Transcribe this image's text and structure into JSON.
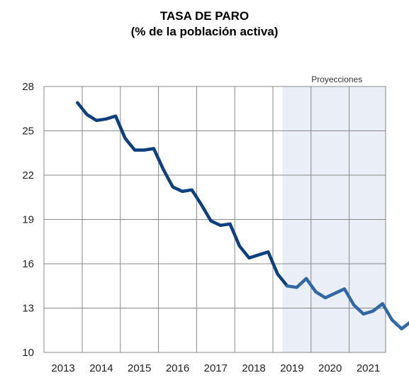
{
  "chart_data": {
    "type": "line",
    "title": "TASA DE PARO",
    "subtitle": "(% de la población activa)",
    "xlabel": "",
    "ylabel": "",
    "ylim": [
      10,
      28
    ],
    "yticks": [
      10,
      13,
      16,
      19,
      22,
      25,
      28
    ],
    "xticks": [
      "2013",
      "2014",
      "2015",
      "2016",
      "2017",
      "2018",
      "2019",
      "2020",
      "2021"
    ],
    "grid": true,
    "shaded_region": {
      "label": "Proyecciones",
      "from_quarter": "2018-Q2",
      "to_quarter": "2021-Q4"
    },
    "colors": {
      "historical": "#0b3f7e",
      "projection": "#2f68a4",
      "shade": "#e9eef7",
      "grid": "#888888"
    },
    "series": [
      {
        "x": [
          "2012-Q4",
          "2013-Q1",
          "2013-Q2",
          "2013-Q3",
          "2013-Q4",
          "2014-Q1",
          "2014-Q2",
          "2014-Q3",
          "2014-Q4",
          "2015-Q1",
          "2015-Q2",
          "2015-Q3",
          "2015-Q4",
          "2016-Q1",
          "2016-Q2",
          "2016-Q3",
          "2016-Q4",
          "2017-Q1",
          "2017-Q2",
          "2017-Q3",
          "2017-Q4",
          "2018-Q1",
          "2018-Q2",
          "2018-Q3",
          "2018-Q4",
          "2019-Q1",
          "2019-Q2",
          "2019-Q3",
          "2019-Q4",
          "2020-Q1",
          "2020-Q2",
          "2020-Q3",
          "2020-Q4",
          "2021-Q1",
          "2021-Q2",
          "2021-Q3",
          "2021-Q4"
        ],
        "values": [
          26.9,
          26.1,
          25.7,
          25.8,
          26.0,
          24.5,
          23.7,
          23.7,
          23.8,
          22.4,
          21.2,
          20.9,
          21.0,
          20.0,
          18.9,
          18.6,
          18.7,
          17.2,
          16.4,
          16.6,
          16.8,
          15.3,
          14.5,
          14.4,
          15.0,
          14.1,
          13.7,
          14.0,
          14.3,
          13.2,
          12.6,
          12.8,
          13.3,
          12.2,
          11.6,
          12.1,
          12.1
        ]
      }
    ]
  }
}
